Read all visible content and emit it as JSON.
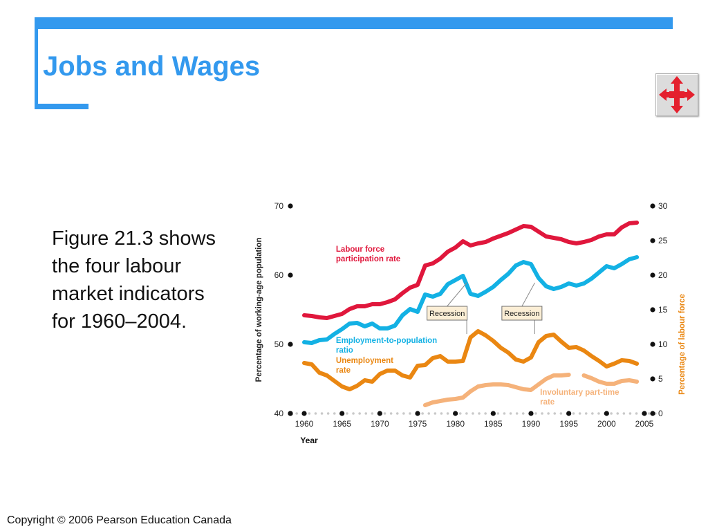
{
  "slide": {
    "title": "Jobs and Wages",
    "caption": "Figure 21.3 shows the four labour market indicators for 1960–2004.",
    "copyright": "Copyright © 2006 Pearson Education Canada",
    "nav_icon": "four-way-arrows-icon",
    "accent_color": "#3399ee"
  },
  "chart_data": {
    "type": "line",
    "xlabel": "Year",
    "ylabel_left": "Percentage of working-age population",
    "ylabel_right": "Percentage of labour force",
    "xlim": [
      1960,
      2005
    ],
    "ylim_left": [
      40,
      70
    ],
    "ylim_right": [
      0,
      30
    ],
    "x_ticks": [
      1960,
      1965,
      1970,
      1975,
      1980,
      1985,
      1990,
      1995,
      2000,
      2005
    ],
    "y_ticks_left": [
      40,
      50,
      60,
      70
    ],
    "y_ticks_right": [
      0,
      5,
      10,
      15,
      20,
      25,
      30
    ],
    "grid": false,
    "recessions": [
      {
        "label": "Recession",
        "start": 1981,
        "end": 1982
      },
      {
        "label": "Recession",
        "start": 1990,
        "end": 1991
      }
    ],
    "series": [
      {
        "name": "Labour force participation rate",
        "axis": "left",
        "color": "#e0173c",
        "label_lines": [
          "Labour force",
          "participation rate"
        ],
        "label_anchor": [
          1964.2,
          63.4
        ],
        "points": [
          [
            1960,
            54.2
          ],
          [
            1961,
            54.1
          ],
          [
            1962,
            53.9
          ],
          [
            1963,
            53.8
          ],
          [
            1964,
            54.1
          ],
          [
            1965,
            54.4
          ],
          [
            1966,
            55.1
          ],
          [
            1967,
            55.5
          ],
          [
            1968,
            55.5
          ],
          [
            1969,
            55.8
          ],
          [
            1970,
            55.8
          ],
          [
            1971,
            56.1
          ],
          [
            1972,
            56.5
          ],
          [
            1973,
            57.4
          ],
          [
            1974,
            58.2
          ],
          [
            1975,
            58.6
          ],
          [
            1976,
            61.4
          ],
          [
            1977,
            61.7
          ],
          [
            1978,
            62.4
          ],
          [
            1979,
            63.4
          ],
          [
            1980,
            64.0
          ],
          [
            1981,
            64.9
          ],
          [
            1982,
            64.3
          ],
          [
            1983,
            64.6
          ],
          [
            1984,
            64.8
          ],
          [
            1985,
            65.3
          ],
          [
            1986,
            65.7
          ],
          [
            1987,
            66.1
          ],
          [
            1988,
            66.6
          ],
          [
            1989,
            67.1
          ],
          [
            1990,
            67.0
          ],
          [
            1991,
            66.3
          ],
          [
            1992,
            65.6
          ],
          [
            1993,
            65.4
          ],
          [
            1994,
            65.2
          ],
          [
            1995,
            64.8
          ],
          [
            1996,
            64.6
          ],
          [
            1997,
            64.8
          ],
          [
            1998,
            65.1
          ],
          [
            1999,
            65.6
          ],
          [
            2000,
            65.9
          ],
          [
            2001,
            65.9
          ],
          [
            2002,
            66.9
          ],
          [
            2003,
            67.5
          ],
          [
            2004,
            67.6
          ]
        ]
      },
      {
        "name": "Employment-to-population ratio",
        "axis": "left",
        "color": "#13b1e4",
        "label_lines": [
          "Employment-to-population",
          "ratio"
        ],
        "label_anchor": [
          1964.2,
          50.2
        ],
        "points": [
          [
            1960,
            50.3
          ],
          [
            1961,
            50.2
          ],
          [
            1962,
            50.6
          ],
          [
            1963,
            50.7
          ],
          [
            1964,
            51.5
          ],
          [
            1965,
            52.2
          ],
          [
            1966,
            53.0
          ],
          [
            1967,
            53.1
          ],
          [
            1968,
            52.6
          ],
          [
            1969,
            53.0
          ],
          [
            1970,
            52.3
          ],
          [
            1971,
            52.3
          ],
          [
            1972,
            52.7
          ],
          [
            1973,
            54.2
          ],
          [
            1974,
            55.1
          ],
          [
            1975,
            54.7
          ],
          [
            1976,
            57.2
          ],
          [
            1977,
            56.9
          ],
          [
            1978,
            57.3
          ],
          [
            1979,
            58.7
          ],
          [
            1980,
            59.3
          ],
          [
            1981,
            59.9
          ],
          [
            1982,
            57.3
          ],
          [
            1983,
            57.0
          ],
          [
            1984,
            57.6
          ],
          [
            1985,
            58.3
          ],
          [
            1986,
            59.3
          ],
          [
            1987,
            60.2
          ],
          [
            1988,
            61.4
          ],
          [
            1989,
            61.9
          ],
          [
            1990,
            61.6
          ],
          [
            1991,
            59.6
          ],
          [
            1992,
            58.4
          ],
          [
            1993,
            58.0
          ],
          [
            1994,
            58.3
          ],
          [
            1995,
            58.8
          ],
          [
            1996,
            58.5
          ],
          [
            1997,
            58.8
          ],
          [
            1998,
            59.5
          ],
          [
            1999,
            60.4
          ],
          [
            2000,
            61.3
          ],
          [
            2001,
            61.0
          ],
          [
            2002,
            61.6
          ],
          [
            2003,
            62.3
          ],
          [
            2004,
            62.6
          ]
        ]
      },
      {
        "name": "Unemployment rate",
        "axis": "right",
        "color": "#ea8712",
        "label_lines": [
          "Unemployment",
          "rate"
        ],
        "label_anchor": [
          1964.2,
          7.3
        ],
        "points": [
          [
            1960,
            7.3
          ],
          [
            1961,
            7.1
          ],
          [
            1962,
            5.9
          ],
          [
            1963,
            5.5
          ],
          [
            1964,
            4.7
          ],
          [
            1965,
            3.9
          ],
          [
            1966,
            3.5
          ],
          [
            1967,
            4.0
          ],
          [
            1968,
            4.8
          ],
          [
            1969,
            4.6
          ],
          [
            1970,
            5.7
          ],
          [
            1971,
            6.2
          ],
          [
            1972,
            6.2
          ],
          [
            1973,
            5.5
          ],
          [
            1974,
            5.2
          ],
          [
            1975,
            6.9
          ],
          [
            1976,
            7.0
          ],
          [
            1977,
            8.0
          ],
          [
            1978,
            8.3
          ],
          [
            1979,
            7.5
          ],
          [
            1980,
            7.5
          ],
          [
            1981,
            7.6
          ],
          [
            1982,
            11.0
          ],
          [
            1983,
            11.9
          ],
          [
            1984,
            11.3
          ],
          [
            1985,
            10.5
          ],
          [
            1986,
            9.5
          ],
          [
            1987,
            8.8
          ],
          [
            1988,
            7.8
          ],
          [
            1989,
            7.5
          ],
          [
            1990,
            8.1
          ],
          [
            1991,
            10.3
          ],
          [
            1992,
            11.2
          ],
          [
            1993,
            11.4
          ],
          [
            1994,
            10.4
          ],
          [
            1995,
            9.5
          ],
          [
            1996,
            9.6
          ],
          [
            1997,
            9.1
          ],
          [
            1998,
            8.3
          ],
          [
            1999,
            7.6
          ],
          [
            2000,
            6.8
          ],
          [
            2001,
            7.2
          ],
          [
            2002,
            7.7
          ],
          [
            2003,
            7.6
          ],
          [
            2004,
            7.2
          ]
        ]
      },
      {
        "name": "Involuntary part-time rate",
        "axis": "right",
        "color": "#f5b27a",
        "label_lines": [
          "Involuntary part-time",
          "rate"
        ],
        "label_anchor": [
          1991.2,
          2.7
        ],
        "segments": [
          [
            [
              1976,
              1.2
            ],
            [
              1977,
              1.6
            ],
            [
              1978,
              1.8
            ],
            [
              1979,
              2.0
            ],
            [
              1980,
              2.1
            ],
            [
              1981,
              2.3
            ],
            [
              1982,
              3.2
            ],
            [
              1983,
              3.9
            ],
            [
              1984,
              4.1
            ],
            [
              1985,
              4.2
            ],
            [
              1986,
              4.2
            ],
            [
              1987,
              4.1
            ],
            [
              1988,
              3.8
            ],
            [
              1989,
              3.5
            ],
            [
              1990,
              3.4
            ],
            [
              1991,
              4.2
            ],
            [
              1992,
              5.0
            ],
            [
              1993,
              5.5
            ],
            [
              1994,
              5.5
            ],
            [
              1995,
              5.6
            ]
          ],
          [
            [
              1997,
              5.5
            ],
            [
              1998,
              5.1
            ],
            [
              1999,
              4.6
            ],
            [
              2000,
              4.3
            ],
            [
              2001,
              4.3
            ],
            [
              2002,
              4.7
            ],
            [
              2003,
              4.8
            ],
            [
              2004,
              4.6
            ]
          ]
        ]
      }
    ]
  }
}
